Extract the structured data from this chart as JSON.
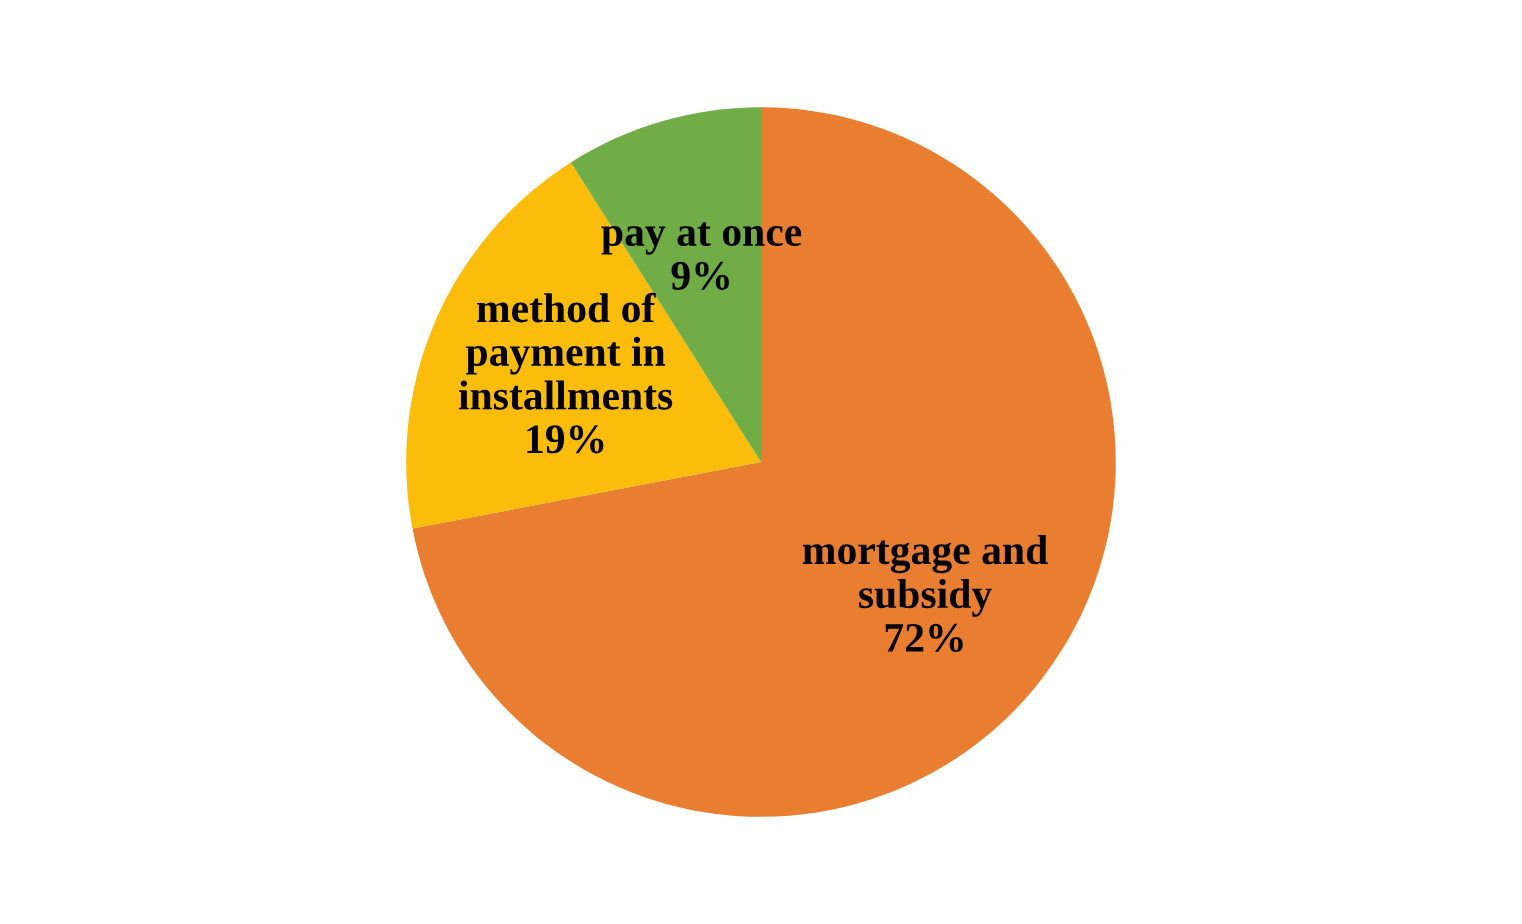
{
  "chart_data": {
    "type": "pie",
    "categories": [
      "mortgage and subsidy",
      "method of payment in installments",
      "pay at once"
    ],
    "values": [
      72,
      19,
      9
    ],
    "value_labels": [
      "72%",
      "19%",
      "9%"
    ],
    "colors": [
      "#e97e31",
      "#fbbd09",
      "#70ad47"
    ],
    "legend": false
  }
}
